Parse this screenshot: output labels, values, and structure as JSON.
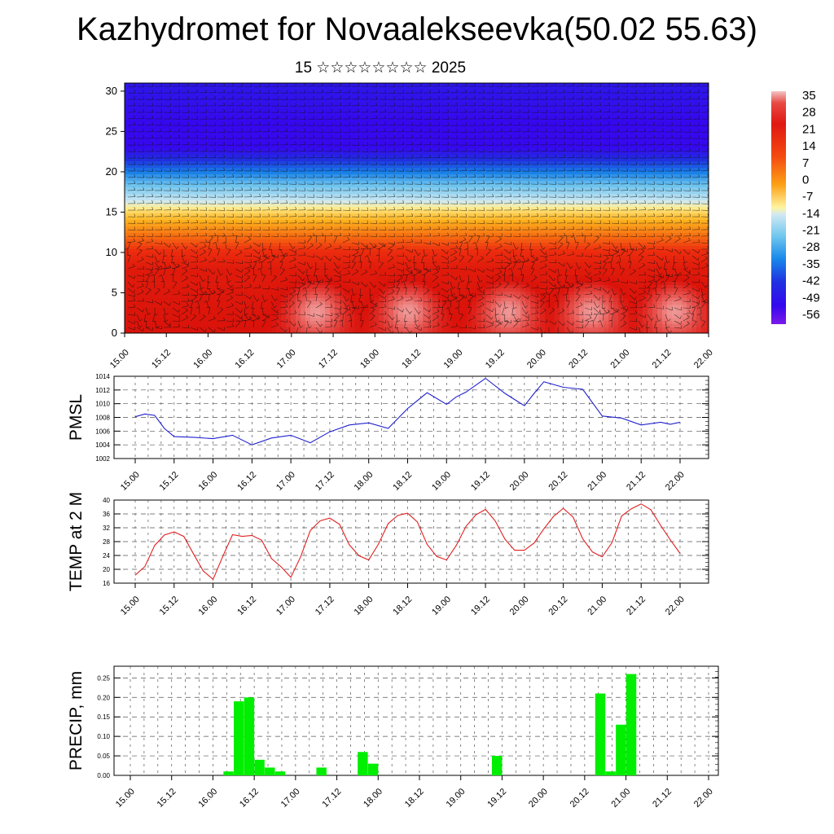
{
  "header": {
    "title": "Kazhydromet for Novaalekseevka(50.02 55.63)",
    "subtitle": "15 ☆☆☆☆☆☆☆☆ 2025"
  },
  "colors": {
    "pmsl_line": "#2020d0",
    "temp_line": "#e02020",
    "precip_bar": "#00ee00",
    "grid": "#555555"
  },
  "chart_data": [
    {
      "type": "heatmap",
      "title": "",
      "xlabel": "",
      "ylabel": "",
      "x_tick_labels": [
        "15.00",
        "15.12",
        "16.00",
        "16.12",
        "17.00",
        "17.12",
        "18.00",
        "18.12",
        "19.00",
        "19.12",
        "20.00",
        "20.12",
        "21.00",
        "21.12",
        "22.00"
      ],
      "ylim": [
        0,
        31
      ],
      "y_ticks": [
        0,
        5,
        10,
        15,
        20,
        25,
        30
      ],
      "colorbar_labels": [
        "35",
        "28",
        "21",
        "14",
        "7",
        "0",
        "-7",
        "-14",
        "-21",
        "-28",
        "-35",
        "-42",
        "-49",
        "-56"
      ],
      "vlim": [
        -60,
        38
      ],
      "overlay": "wind barbs",
      "warm_cores_x": [
        17.3,
        18.4,
        19.6,
        20.6,
        21.6
      ]
    },
    {
      "type": "line",
      "ylabel": "PMSL",
      "ylim": [
        1002,
        1014
      ],
      "y_ticks": [
        1002,
        1004,
        1006,
        1008,
        1010,
        1012,
        1014
      ],
      "x_tick_labels": [
        "15.00",
        "15.12",
        "16.00",
        "16.12",
        "17.00",
        "17.12",
        "18.00",
        "18.12",
        "19.00",
        "19.12",
        "20.00",
        "20.12",
        "21.00",
        "21.12",
        "22.00"
      ],
      "series": [
        {
          "x": [
            15.0,
            15.125,
            15.25,
            15.375,
            15.5,
            15.75,
            16.0,
            16.25,
            16.5,
            16.75,
            17.0,
            17.25,
            17.5,
            17.75,
            18.0,
            18.25,
            18.5,
            18.75,
            19.0,
            19.125,
            19.25,
            19.5,
            19.75,
            20.0,
            20.125,
            20.25,
            20.5,
            20.75,
            21.0,
            21.25,
            21.5,
            21.75,
            21.875,
            22.0
          ],
          "values": [
            1008.1,
            1008.5,
            1008.3,
            1006.4,
            1005.2,
            1005.1,
            1004.9,
            1005.4,
            1004.0,
            1005.0,
            1005.4,
            1004.3,
            1005.9,
            1006.9,
            1007.2,
            1006.4,
            1009.3,
            1011.6,
            1009.9,
            1011.0,
            1011.7,
            1013.7,
            1011.5,
            1009.7,
            1011.5,
            1013.2,
            1012.4,
            1012.1,
            1008.2,
            1007.9,
            1006.9,
            1007.3,
            1007.0,
            1007.3
          ]
        }
      ]
    },
    {
      "type": "line",
      "ylabel": "TEMP at 2 M",
      "ylim": [
        16,
        40
      ],
      "y_ticks": [
        16,
        20,
        24,
        28,
        32,
        36,
        40
      ],
      "x_tick_labels": [
        "15.00",
        "15.12",
        "16.00",
        "16.12",
        "17.00",
        "17.12",
        "18.00",
        "18.12",
        "19.00",
        "19.12",
        "20.00",
        "20.12",
        "21.00",
        "21.12",
        "22.00"
      ],
      "series": [
        {
          "x": [
            15.0,
            15.125,
            15.25,
            15.375,
            15.5,
            15.625,
            15.75,
            15.875,
            16.0,
            16.125,
            16.25,
            16.375,
            16.5,
            16.625,
            16.75,
            16.875,
            17.0,
            17.125,
            17.25,
            17.375,
            17.5,
            17.625,
            17.75,
            17.875,
            18.0,
            18.125,
            18.25,
            18.375,
            18.5,
            18.625,
            18.75,
            18.875,
            19.0,
            19.125,
            19.25,
            19.375,
            19.5,
            19.625,
            19.75,
            19.875,
            20.0,
            20.125,
            20.25,
            20.375,
            20.5,
            20.625,
            20.75,
            20.875,
            21.0,
            21.125,
            21.25,
            21.375,
            21.5,
            21.625,
            21.75,
            21.875,
            22.0
          ],
          "values": [
            18.3,
            20.8,
            26.9,
            29.9,
            30.8,
            29.5,
            24.4,
            19.5,
            17.1,
            23.7,
            30.0,
            29.5,
            29.8,
            28.4,
            23.1,
            20.7,
            17.7,
            23.6,
            31.2,
            34.0,
            34.8,
            33.0,
            27.1,
            23.9,
            22.7,
            27.3,
            33.2,
            35.6,
            36.2,
            33.7,
            27.2,
            23.7,
            22.7,
            26.9,
            32.4,
            35.7,
            37.3,
            34.0,
            28.7,
            25.5,
            25.5,
            27.6,
            31.7,
            35.3,
            37.6,
            35.1,
            28.8,
            25.0,
            23.6,
            27.7,
            35.4,
            37.5,
            38.9,
            37.2,
            32.7,
            28.5,
            24.6
          ]
        }
      ]
    },
    {
      "type": "bar",
      "ylabel": "PRECIP, mm",
      "ylim": [
        0,
        0.28
      ],
      "y_tick_labels": [
        "0.00",
        "0.05",
        "0.10",
        "0.15",
        "0.20",
        "0.25"
      ],
      "x_tick_labels": [
        "15.00",
        "15.12",
        "16.00",
        "16.12",
        "17.00",
        "17.12",
        "18.00",
        "18.12",
        "19.00",
        "19.12",
        "20.00",
        "20.12",
        "21.00",
        "21.12",
        "22.00"
      ],
      "series": [
        {
          "x": [
            16.25,
            16.375,
            16.5,
            16.625,
            16.75,
            16.875,
            17.375,
            17.875,
            18.0,
            19.5,
            20.75,
            20.875,
            21.0,
            21.125
          ],
          "values": [
            0.01,
            0.19,
            0.2,
            0.04,
            0.02,
            0.01,
            0.02,
            0.06,
            0.03,
            0.05,
            0.21,
            0.01,
            0.13,
            0.26
          ]
        }
      ]
    }
  ]
}
